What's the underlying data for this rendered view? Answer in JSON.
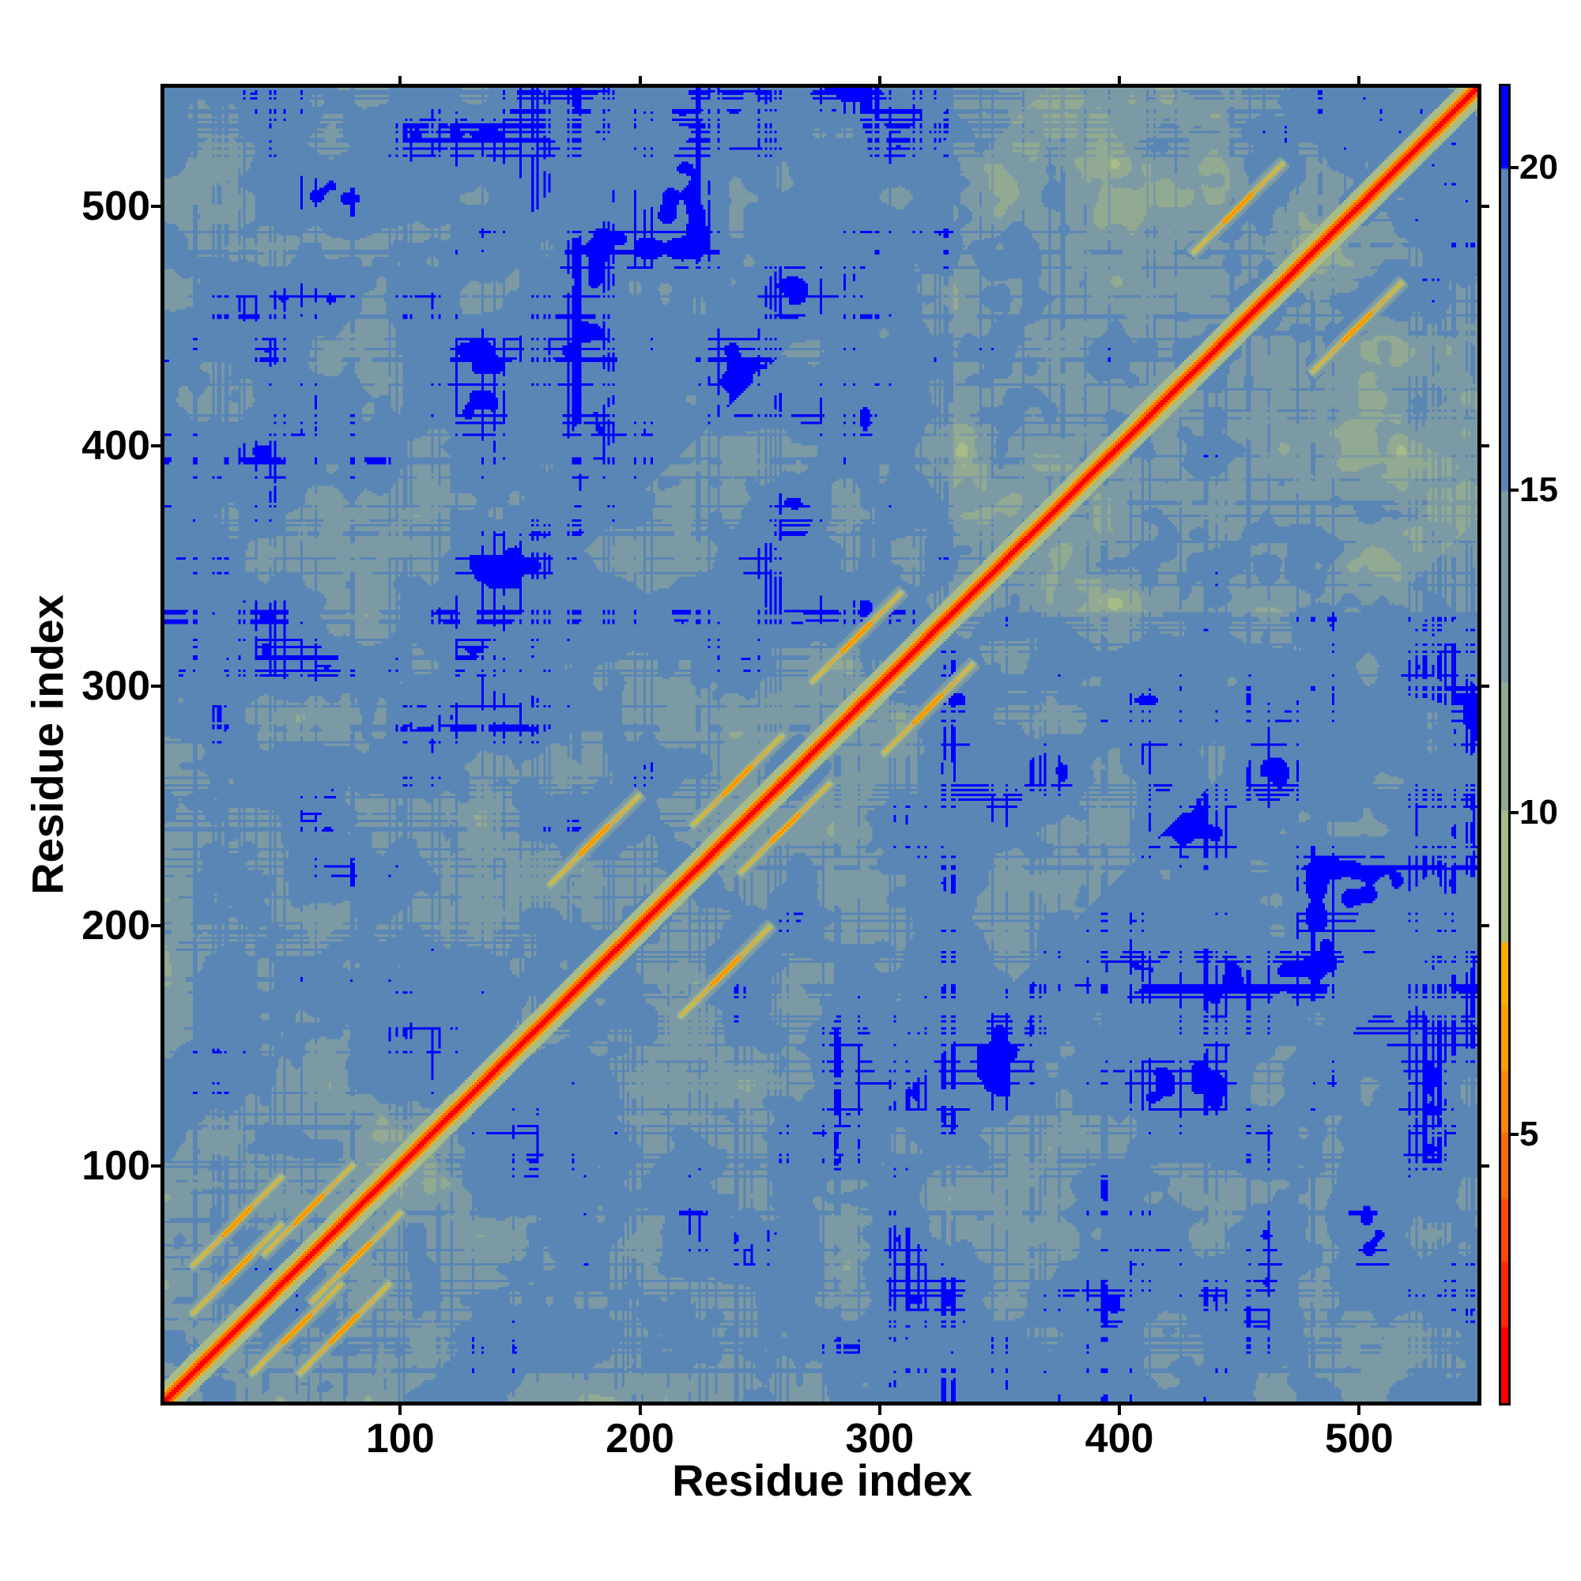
{
  "chart_data": {
    "type": "heatmap",
    "title": "",
    "xlabel": "Residue index",
    "ylabel": "Residue index",
    "xlim": [
      0,
      551
    ],
    "ylim": [
      0,
      551
    ],
    "xticks": [
      100,
      200,
      300,
      400,
      500
    ],
    "yticks": [
      100,
      200,
      300,
      400,
      500
    ],
    "colorbar": {
      "range": [
        0.8,
        21.3
      ],
      "ticks": [
        5,
        10,
        15,
        20
      ]
    },
    "colorscale": [
      {
        "max": 2,
        "color": "#ff0000"
      },
      {
        "max": 3,
        "color": "#ff2a00"
      },
      {
        "max": 4,
        "color": "#ff4a00"
      },
      {
        "max": 5,
        "color": "#ff6a00"
      },
      {
        "max": 6,
        "color": "#ff8800"
      },
      {
        "max": 7,
        "color": "#ffa000"
      },
      {
        "max": 8,
        "color": "#f5b000"
      },
      {
        "max": 10,
        "color": "#a8bc88"
      },
      {
        "max": 12,
        "color": "#92aa92"
      },
      {
        "max": 15,
        "color": "#7c9aa4"
      },
      {
        "max": 20,
        "color": "#5a86b6"
      },
      {
        "max": 99,
        "color": "#0000ff"
      }
    ],
    "description_values": "symmetric residue-residue distance map; diagonal distances < 4, most off-diagonal 15-20, blue > 20"
  }
}
